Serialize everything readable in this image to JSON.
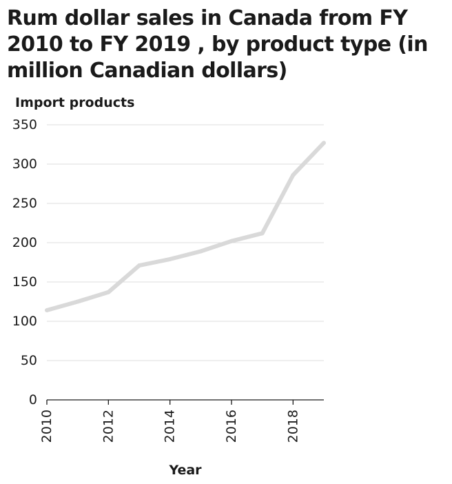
{
  "chart_data": {
    "type": "line",
    "title": "Rum dollar sales in Canada from FY 2010 to FY 2019 , by product type (in million Canadian dollars)",
    "xlabel": "Year",
    "ylabel": "Import products",
    "x": [
      2010,
      2011,
      2012,
      2013,
      2014,
      2015,
      2016,
      2017,
      2018,
      2019
    ],
    "series": [
      {
        "name": "Import products",
        "values": [
          114,
          125,
          137,
          171,
          179,
          189,
          202,
          212,
          286,
          327
        ]
      }
    ],
    "xlim": [
      2010,
      2019
    ],
    "ylim": [
      0,
      350
    ],
    "xticks": [
      2010,
      2012,
      2014,
      2016,
      2018
    ],
    "yticks": [
      0,
      50,
      100,
      150,
      200,
      250,
      300,
      350
    ],
    "grid": "horizontal",
    "line_color": "#d9d9d9",
    "grid_color": "#dcdcdc",
    "axis_color": "#1a1a1a"
  }
}
